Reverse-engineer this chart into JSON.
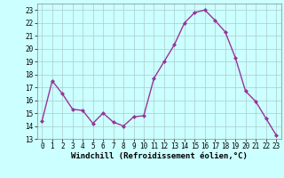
{
  "x": [
    0,
    1,
    2,
    3,
    4,
    5,
    6,
    7,
    8,
    9,
    10,
    11,
    12,
    13,
    14,
    15,
    16,
    17,
    18,
    19,
    20,
    21,
    22,
    23
  ],
  "y": [
    14.4,
    17.5,
    16.5,
    15.3,
    15.2,
    14.2,
    15.0,
    14.3,
    14.0,
    14.7,
    14.8,
    17.7,
    19.0,
    20.3,
    22.0,
    22.8,
    23.0,
    22.2,
    21.3,
    19.3,
    16.7,
    15.9,
    14.6,
    13.3
  ],
  "line_color": "#993399",
  "marker": "D",
  "marker_size": 2,
  "bg_color": "#ccffff",
  "grid_color": "#aacccc",
  "xlabel": "Windchill (Refroidissement éolien,°C)",
  "ylim": [
    13,
    23.5
  ],
  "xlim": [
    -0.5,
    23.5
  ],
  "yticks": [
    13,
    14,
    15,
    16,
    17,
    18,
    19,
    20,
    21,
    22,
    23
  ],
  "xticks": [
    0,
    1,
    2,
    3,
    4,
    5,
    6,
    7,
    8,
    9,
    10,
    11,
    12,
    13,
    14,
    15,
    16,
    17,
    18,
    19,
    20,
    21,
    22,
    23
  ],
  "tick_fontsize": 5.5,
  "xlabel_fontsize": 6.5,
  "linewidth": 1.0
}
